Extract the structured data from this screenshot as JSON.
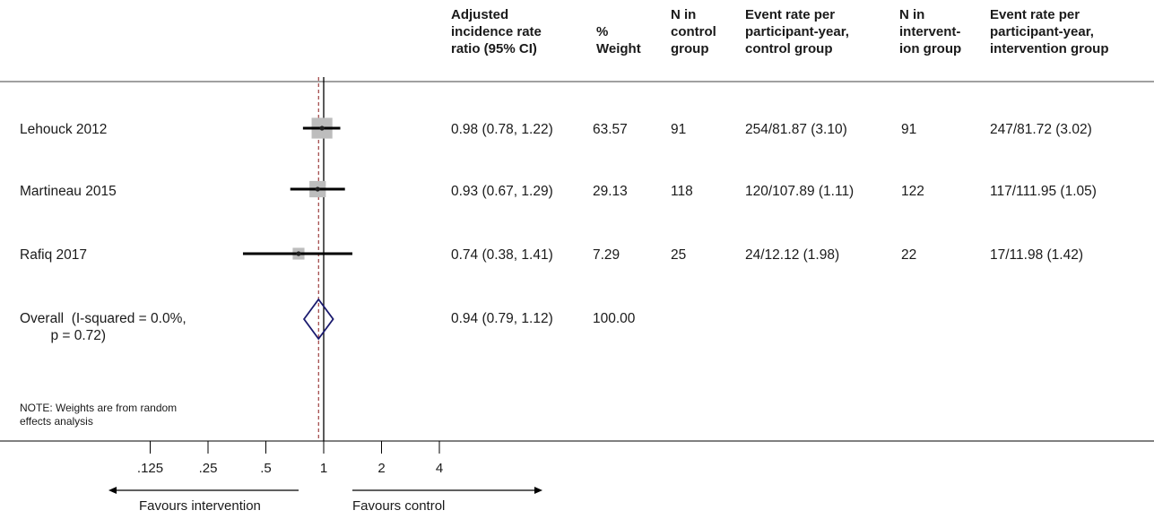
{
  "headers": {
    "estimate": "Adjusted\nincidence rate\nratio (95% CI)",
    "weight": "%\nWeight",
    "n_control": "N in\ncontrol\ngroup",
    "rate_control": "Event rate per\nparticipant-year,\ncontrol group",
    "n_intervention": "N in\nintervent-\nion group",
    "rate_intervention": "Event rate per\nparticipant-year,\nintervention group"
  },
  "rows": [
    {
      "study": "Lehouck 2012",
      "ci_text": "0.98 (0.78, 1.22)",
      "weight": "63.57",
      "n_control": "91",
      "rate_control": "254/81.87 (3.10)",
      "n_intervention": "91",
      "rate_intervention": "247/81.72 (3.02)"
    },
    {
      "study": "Martineau 2015",
      "ci_text": "0.93 (0.67, 1.29)",
      "weight": "29.13",
      "n_control": "118",
      "rate_control": "120/107.89 (1.11)",
      "n_intervention": "122",
      "rate_intervention": "117/111.95 (1.05)"
    },
    {
      "study": "Rafiq 2017",
      "ci_text": "0.74 (0.38, 1.41)",
      "weight": "7.29",
      "n_control": "25",
      "rate_control": "24/12.12 (1.98)",
      "n_intervention": "22",
      "rate_intervention": "17/11.98 (1.42)"
    }
  ],
  "overall": {
    "label": "Overall  (I-squared = 0.0%,\n        p = 0.72)",
    "ci_text": "0.94 (0.79, 1.12)",
    "weight": "100.00"
  },
  "note": "NOTE: Weights are from random\neffects analysis",
  "axis": {
    "ticks": [
      ".125",
      ".25",
      ".5",
      "1",
      "2",
      "4"
    ]
  },
  "favours": {
    "left": "Favours intervention",
    "right": "Favours control"
  },
  "colors": {
    "diamond": "#1a1a6e",
    "box": "#bdbdbd",
    "line": "#000000",
    "overall_line": "#8b1a1a"
  },
  "chart_data": {
    "type": "forest",
    "x_scale": "log",
    "x_ticks": [
      0.125,
      0.25,
      0.5,
      1,
      2,
      4
    ],
    "null_value": 1,
    "studies": [
      {
        "name": "Lehouck 2012",
        "estimate": 0.98,
        "lower": 0.78,
        "upper": 1.22,
        "weight": 63.57
      },
      {
        "name": "Martineau 2015",
        "estimate": 0.93,
        "lower": 0.67,
        "upper": 1.29,
        "weight": 29.13
      },
      {
        "name": "Rafiq 2017",
        "estimate": 0.74,
        "lower": 0.38,
        "upper": 1.41,
        "weight": 7.29
      }
    ],
    "overall": {
      "estimate": 0.94,
      "lower": 0.79,
      "upper": 1.12,
      "weight": 100.0
    }
  }
}
